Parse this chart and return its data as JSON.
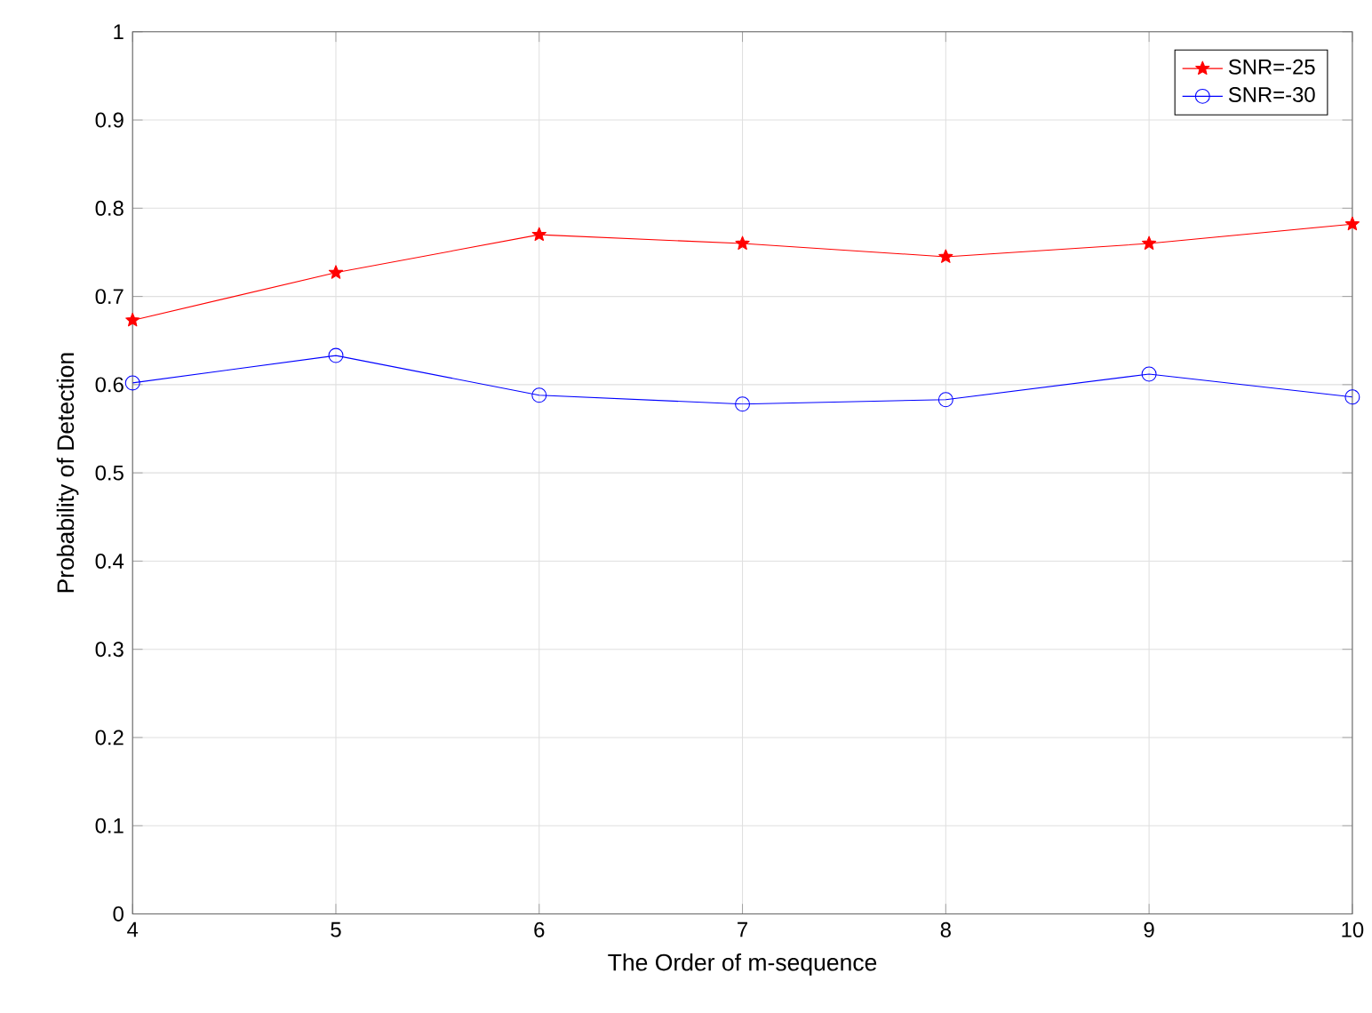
{
  "chart_data": {
    "type": "line",
    "xlabel": "The Order of m-sequence",
    "ylabel": "Probability of Detection",
    "x": [
      4,
      5,
      6,
      7,
      8,
      9,
      10
    ],
    "series": [
      {
        "name": "SNR=-25",
        "color": "#ff0000",
        "marker": "star",
        "values": [
          0.673,
          0.727,
          0.77,
          0.76,
          0.745,
          0.76,
          0.782
        ]
      },
      {
        "name": "SNR=-30",
        "color": "#0000ff",
        "marker": "circle",
        "values": [
          0.602,
          0.633,
          0.588,
          0.578,
          0.583,
          0.612,
          0.586
        ]
      }
    ],
    "xlim": [
      4,
      10
    ],
    "xticks": [
      4,
      5,
      6,
      7,
      8,
      9,
      10
    ],
    "ylim": [
      0,
      1
    ],
    "yticks": [
      0,
      {
        "value": 0.1,
        "label": "0.1"
      },
      {
        "value": 0.2,
        "label": "0.2"
      },
      {
        "value": 0.3,
        "label": "0.3"
      },
      {
        "value": 0.4,
        "label": "0.4"
      },
      {
        "value": 0.5,
        "label": "0.5"
      },
      {
        "value": 0.6,
        "label": "0.6"
      },
      {
        "value": 0.7,
        "label": "0.7"
      },
      {
        "value": 0.8,
        "label": "0.8"
      },
      {
        "value": 0.9,
        "label": "0.9"
      },
      1
    ],
    "grid": true,
    "legend": "top right",
    "line_style": "solid"
  }
}
